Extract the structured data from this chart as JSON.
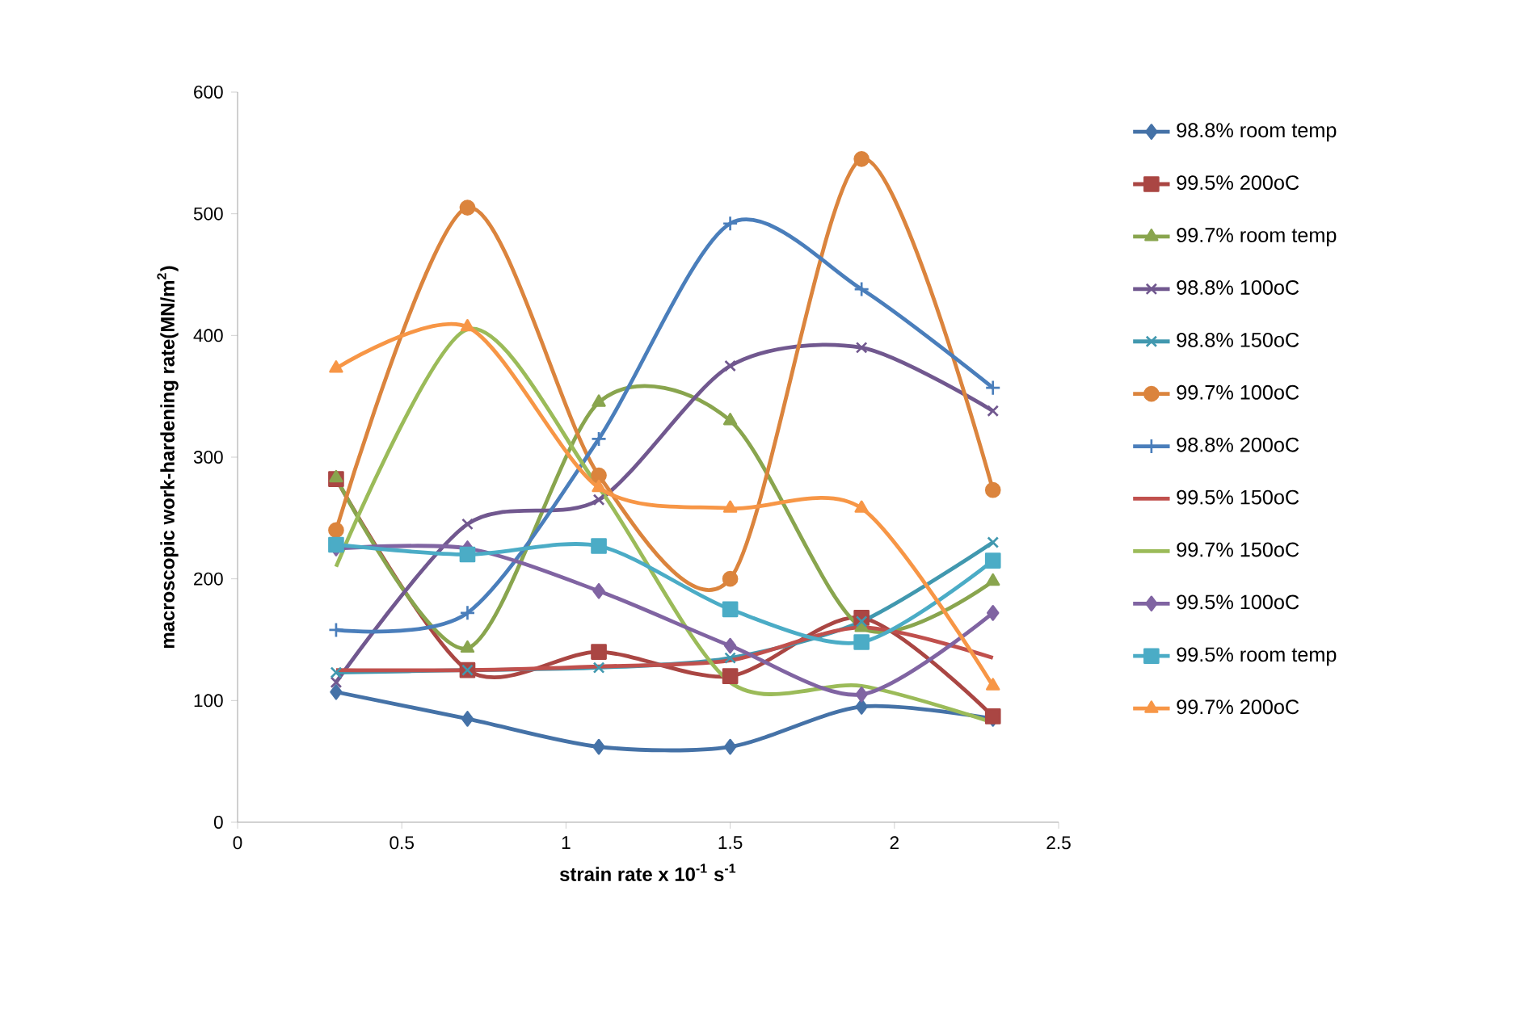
{
  "chart_data": {
    "type": "line",
    "xlabel": "strain rate  x 10$^{-1}$ s$^{-1}$",
    "ylabel": "macroscopic work-hardening rate(MN/m$^{2}$)",
    "x": [
      0.3,
      0.7,
      1.1,
      1.5,
      1.9,
      2.3
    ],
    "xlim": [
      0,
      2.5
    ],
    "xticks": [
      0,
      0.5,
      1,
      1.5,
      2,
      2.5
    ],
    "ylim": [
      0,
      600
    ],
    "yticks": [
      0,
      100,
      200,
      300,
      400,
      500,
      600
    ],
    "grid": false,
    "legend": "right",
    "line_style": "solid",
    "series": [
      {
        "name": "98.8% room temp",
        "color": "#4572a7",
        "marker": "diamond",
        "values": [
          107,
          85,
          62,
          62,
          95,
          85
        ]
      },
      {
        "name": "99.5% 200oC",
        "color": "#aa4643",
        "marker": "square",
        "values": [
          282,
          125,
          140,
          120,
          168,
          87
        ]
      },
      {
        "name": "99.7% room temp",
        "color": "#89a54e",
        "marker": "triangle",
        "values": [
          283,
          143,
          345,
          330,
          160,
          198
        ]
      },
      {
        "name": "98.8% 100oC",
        "color": "#71588f",
        "marker": "cross",
        "values": [
          115,
          245,
          265,
          375,
          390,
          338
        ]
      },
      {
        "name": "98.8% 150oC",
        "color": "#4198af",
        "marker": "cross",
        "values": [
          123,
          125,
          127,
          135,
          165,
          230
        ]
      },
      {
        "name": "99.7% 100oC",
        "color": "#db843d",
        "marker": "circle",
        "values": [
          240,
          505,
          285,
          200,
          545,
          273
        ]
      },
      {
        "name": "98.8% 200oC",
        "color": "#4a7ebb",
        "marker": "plus",
        "values": [
          158,
          172,
          315,
          492,
          438,
          357
        ]
      },
      {
        "name": "99.5% 150oC",
        "color": "#c0504d",
        "marker": "none",
        "values": [
          125,
          125,
          128,
          133,
          160,
          135
        ]
      },
      {
        "name": "99.7% 150oC",
        "color": "#9bbb59",
        "marker": "none",
        "values": [
          210,
          405,
          275,
          115,
          112,
          82
        ]
      },
      {
        "name": "99.5% 100oC",
        "color": "#8064a2",
        "marker": "diamond",
        "values": [
          225,
          225,
          190,
          145,
          105,
          172
        ]
      },
      {
        "name": "99.5% room temp",
        "color": "#4bacc6",
        "marker": "square",
        "values": [
          228,
          220,
          227,
          175,
          148,
          215
        ]
      },
      {
        "name": "99.7% 200oC",
        "color": "#f79646",
        "marker": "triangle",
        "values": [
          373,
          407,
          275,
          258,
          258,
          112
        ]
      }
    ]
  }
}
